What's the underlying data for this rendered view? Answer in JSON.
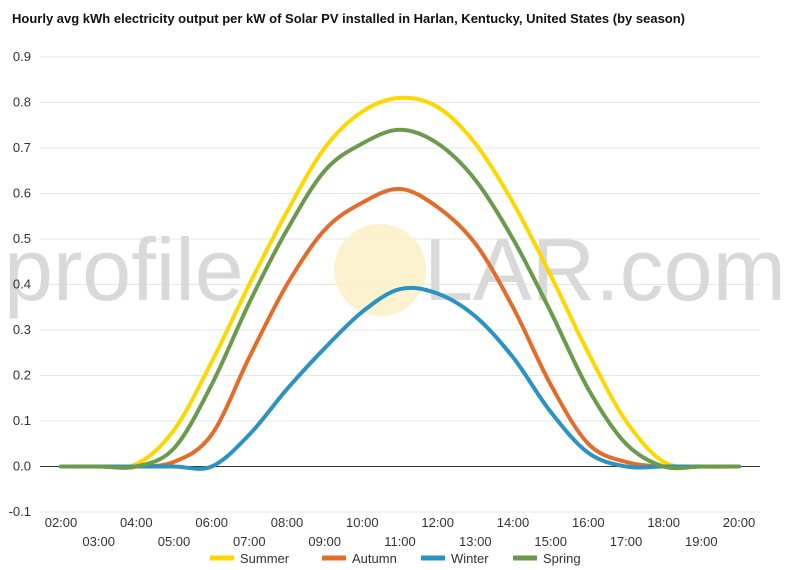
{
  "chart_data": {
    "type": "line",
    "title": "Hourly avg kWh electricity output per kW of Solar PV installed in Harlan, Kentucky, United States (by season)",
    "watermark": {
      "left": "profile",
      "right": "LAR.com"
    },
    "xlabel": "",
    "ylabel": "",
    "x": [
      "02:00",
      "03:00",
      "04:00",
      "05:00",
      "06:00",
      "07:00",
      "08:00",
      "09:00",
      "10:00",
      "11:00",
      "12:00",
      "13:00",
      "14:00",
      "15:00",
      "16:00",
      "17:00",
      "18:00",
      "19:00",
      "20:00"
    ],
    "yticks": [
      "-0.1",
      "0.0",
      "0.1",
      "0.2",
      "0.3",
      "0.4",
      "0.5",
      "0.6",
      "0.7",
      "0.8",
      "0.9"
    ],
    "ylim": [
      -0.1,
      0.9
    ],
    "grid": true,
    "legend_position": "bottom",
    "series": [
      {
        "name": "Summer",
        "color": "#ffd700",
        "values": [
          0,
          0,
          0.005,
          0.08,
          0.23,
          0.4,
          0.56,
          0.7,
          0.78,
          0.81,
          0.79,
          0.71,
          0.58,
          0.42,
          0.25,
          0.1,
          0.01,
          0,
          0
        ]
      },
      {
        "name": "Autumn",
        "color": "#e46c2b",
        "values": [
          0,
          0,
          0,
          0.01,
          0.07,
          0.24,
          0.4,
          0.52,
          0.58,
          0.61,
          0.57,
          0.49,
          0.35,
          0.18,
          0.05,
          0.01,
          0,
          0,
          0
        ]
      },
      {
        "name": "Winter",
        "color": "#2a93c1",
        "values": [
          0,
          0,
          0,
          0,
          0,
          0.07,
          0.17,
          0.26,
          0.34,
          0.39,
          0.38,
          0.33,
          0.24,
          0.12,
          0.03,
          0,
          0,
          0,
          0
        ]
      },
      {
        "name": "Spring",
        "color": "#6a9a4b",
        "values": [
          0,
          0,
          0,
          0.04,
          0.18,
          0.36,
          0.52,
          0.65,
          0.71,
          0.74,
          0.71,
          0.63,
          0.5,
          0.34,
          0.17,
          0.05,
          0,
          0,
          0
        ]
      }
    ]
  }
}
